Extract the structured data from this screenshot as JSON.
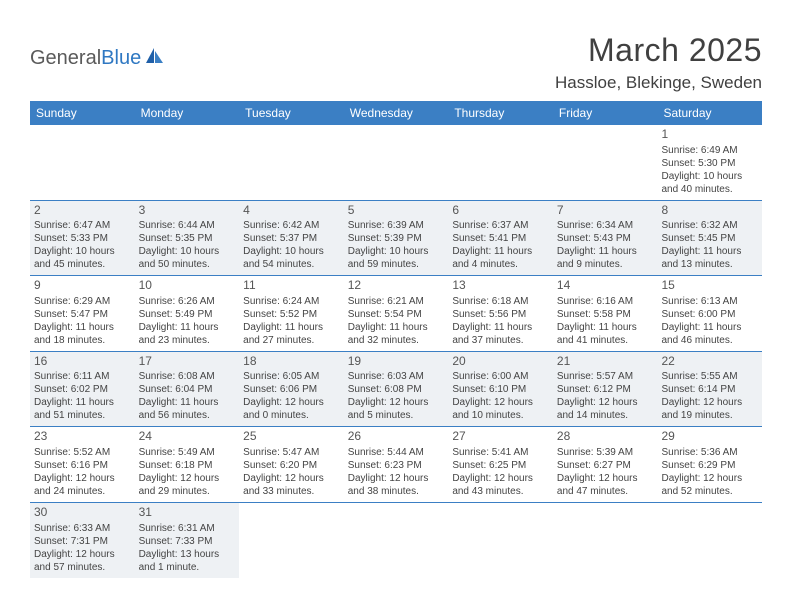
{
  "logo": {
    "text1": "General",
    "text2": "Blue"
  },
  "title": "March 2025",
  "location": "Hassloe, Blekinge, Sweden",
  "colors": {
    "header_bg": "#3b7fc4",
    "shaded_bg": "#eef1f4",
    "text": "#404040"
  },
  "weekdays": [
    "Sunday",
    "Monday",
    "Tuesday",
    "Wednesday",
    "Thursday",
    "Friday",
    "Saturday"
  ],
  "weeks": [
    [
      {
        "blank": true
      },
      {
        "blank": true
      },
      {
        "blank": true
      },
      {
        "blank": true
      },
      {
        "blank": true
      },
      {
        "blank": true
      },
      {
        "n": "1",
        "sr": "6:49 AM",
        "ss": "5:30 PM",
        "dl": "10 hours and 40 minutes.",
        "shaded": false
      }
    ],
    [
      {
        "n": "2",
        "sr": "6:47 AM",
        "ss": "5:33 PM",
        "dl": "10 hours and 45 minutes.",
        "shaded": true
      },
      {
        "n": "3",
        "sr": "6:44 AM",
        "ss": "5:35 PM",
        "dl": "10 hours and 50 minutes.",
        "shaded": true
      },
      {
        "n": "4",
        "sr": "6:42 AM",
        "ss": "5:37 PM",
        "dl": "10 hours and 54 minutes.",
        "shaded": true
      },
      {
        "n": "5",
        "sr": "6:39 AM",
        "ss": "5:39 PM",
        "dl": "10 hours and 59 minutes.",
        "shaded": true
      },
      {
        "n": "6",
        "sr": "6:37 AM",
        "ss": "5:41 PM",
        "dl": "11 hours and 4 minutes.",
        "shaded": true
      },
      {
        "n": "7",
        "sr": "6:34 AM",
        "ss": "5:43 PM",
        "dl": "11 hours and 9 minutes.",
        "shaded": true
      },
      {
        "n": "8",
        "sr": "6:32 AM",
        "ss": "5:45 PM",
        "dl": "11 hours and 13 minutes.",
        "shaded": true
      }
    ],
    [
      {
        "n": "9",
        "sr": "6:29 AM",
        "ss": "5:47 PM",
        "dl": "11 hours and 18 minutes.",
        "shaded": false
      },
      {
        "n": "10",
        "sr": "6:26 AM",
        "ss": "5:49 PM",
        "dl": "11 hours and 23 minutes.",
        "shaded": false
      },
      {
        "n": "11",
        "sr": "6:24 AM",
        "ss": "5:52 PM",
        "dl": "11 hours and 27 minutes.",
        "shaded": false
      },
      {
        "n": "12",
        "sr": "6:21 AM",
        "ss": "5:54 PM",
        "dl": "11 hours and 32 minutes.",
        "shaded": false
      },
      {
        "n": "13",
        "sr": "6:18 AM",
        "ss": "5:56 PM",
        "dl": "11 hours and 37 minutes.",
        "shaded": false
      },
      {
        "n": "14",
        "sr": "6:16 AM",
        "ss": "5:58 PM",
        "dl": "11 hours and 41 minutes.",
        "shaded": false
      },
      {
        "n": "15",
        "sr": "6:13 AM",
        "ss": "6:00 PM",
        "dl": "11 hours and 46 minutes.",
        "shaded": false
      }
    ],
    [
      {
        "n": "16",
        "sr": "6:11 AM",
        "ss": "6:02 PM",
        "dl": "11 hours and 51 minutes.",
        "shaded": true
      },
      {
        "n": "17",
        "sr": "6:08 AM",
        "ss": "6:04 PM",
        "dl": "11 hours and 56 minutes.",
        "shaded": true
      },
      {
        "n": "18",
        "sr": "6:05 AM",
        "ss": "6:06 PM",
        "dl": "12 hours and 0 minutes.",
        "shaded": true
      },
      {
        "n": "19",
        "sr": "6:03 AM",
        "ss": "6:08 PM",
        "dl": "12 hours and 5 minutes.",
        "shaded": true
      },
      {
        "n": "20",
        "sr": "6:00 AM",
        "ss": "6:10 PM",
        "dl": "12 hours and 10 minutes.",
        "shaded": true
      },
      {
        "n": "21",
        "sr": "5:57 AM",
        "ss": "6:12 PM",
        "dl": "12 hours and 14 minutes.",
        "shaded": true
      },
      {
        "n": "22",
        "sr": "5:55 AM",
        "ss": "6:14 PM",
        "dl": "12 hours and 19 minutes.",
        "shaded": true
      }
    ],
    [
      {
        "n": "23",
        "sr": "5:52 AM",
        "ss": "6:16 PM",
        "dl": "12 hours and 24 minutes.",
        "shaded": false
      },
      {
        "n": "24",
        "sr": "5:49 AM",
        "ss": "6:18 PM",
        "dl": "12 hours and 29 minutes.",
        "shaded": false
      },
      {
        "n": "25",
        "sr": "5:47 AM",
        "ss": "6:20 PM",
        "dl": "12 hours and 33 minutes.",
        "shaded": false
      },
      {
        "n": "26",
        "sr": "5:44 AM",
        "ss": "6:23 PM",
        "dl": "12 hours and 38 minutes.",
        "shaded": false
      },
      {
        "n": "27",
        "sr": "5:41 AM",
        "ss": "6:25 PM",
        "dl": "12 hours and 43 minutes.",
        "shaded": false
      },
      {
        "n": "28",
        "sr": "5:39 AM",
        "ss": "6:27 PM",
        "dl": "12 hours and 47 minutes.",
        "shaded": false
      },
      {
        "n": "29",
        "sr": "5:36 AM",
        "ss": "6:29 PM",
        "dl": "12 hours and 52 minutes.",
        "shaded": false
      }
    ],
    [
      {
        "n": "30",
        "sr": "6:33 AM",
        "ss": "7:31 PM",
        "dl": "12 hours and 57 minutes.",
        "shaded": true
      },
      {
        "n": "31",
        "sr": "6:31 AM",
        "ss": "7:33 PM",
        "dl": "13 hours and 1 minute.",
        "shaded": true
      },
      {
        "blank": true
      },
      {
        "blank": true
      },
      {
        "blank": true
      },
      {
        "blank": true
      },
      {
        "blank": true
      }
    ]
  ]
}
